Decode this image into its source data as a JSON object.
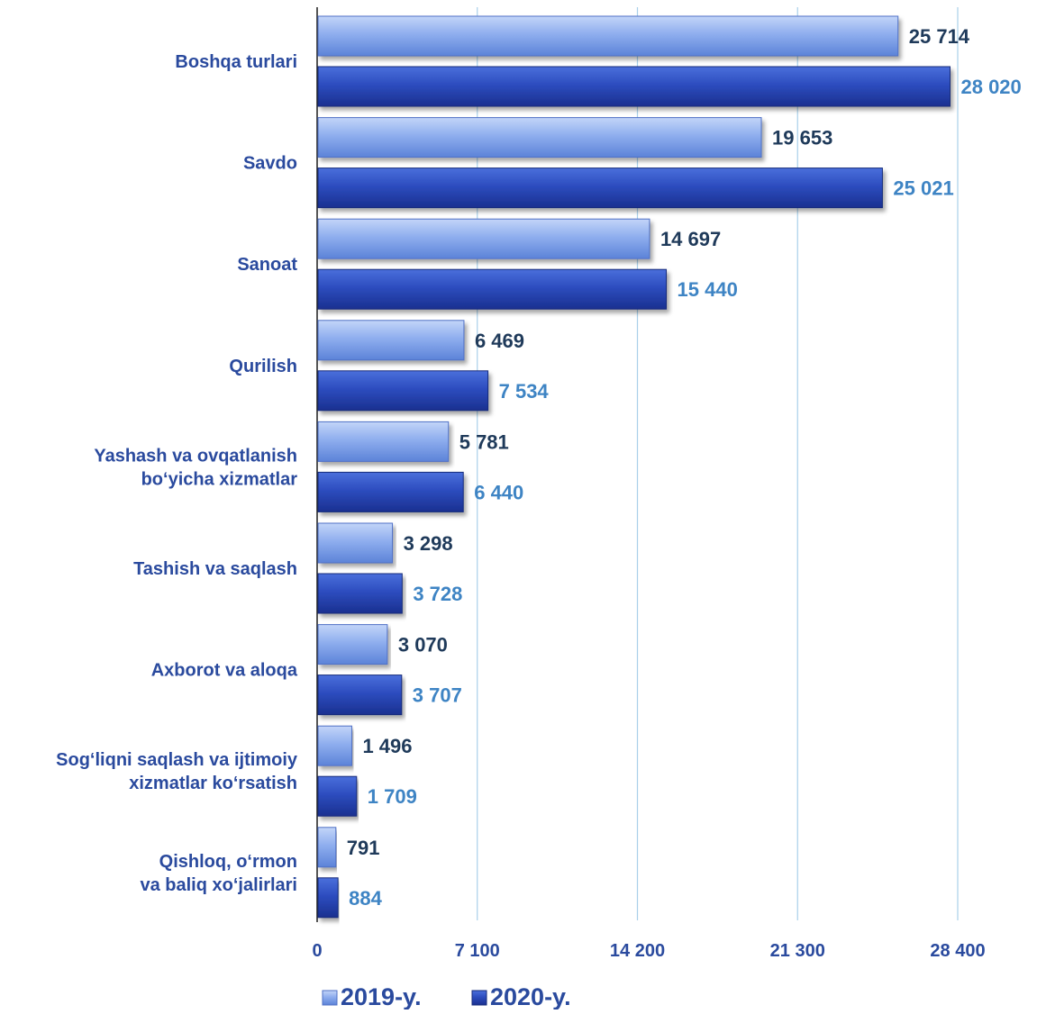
{
  "colors": {
    "series_2019_light": "#9BB8F2",
    "series_2019_dark": "#5B82DA",
    "series_2020_light": "#3B5FD0",
    "series_2020_dark": "#1C3596",
    "category_label": "#2A4A9E",
    "value_label_2019": "#1F3A5A",
    "value_label_2020": "#3E84C4",
    "tick_label": "#2A4A9E",
    "gridline": "#A9D0EA",
    "axis": "#1F1F1F"
  },
  "chart_data": {
    "type": "bar",
    "orientation": "horizontal",
    "categories": [
      [
        "Boshqa turlari"
      ],
      [
        "Savdo"
      ],
      [
        "Sanoat"
      ],
      [
        "Qurilish"
      ],
      [
        "Yashash va ovqatlanish",
        "bo‘yicha xizmatlar"
      ],
      [
        "Tashish va saqlash"
      ],
      [
        "Axborot va aloqa"
      ],
      [
        "Sog‘liqni saqlash va ijtimoiy",
        "xizmatlar ko‘rsatish"
      ],
      [
        "Qishloq, o‘rmon",
        "va baliq xo‘jalirlari"
      ]
    ],
    "series": [
      {
        "name": "2019-y.",
        "values": [
          25714,
          19653,
          14697,
          6469,
          5781,
          3298,
          3070,
          1496,
          791
        ],
        "labels": [
          "25 714",
          "19 653",
          "14 697",
          "6 469",
          "5 781",
          "3 298",
          "3 070",
          "1 496",
          "791"
        ]
      },
      {
        "name": "2020-y.",
        "values": [
          28020,
          25021,
          15440,
          7534,
          6440,
          3728,
          3707,
          1709,
          884
        ],
        "labels": [
          "28 020",
          "25 021",
          "15 440",
          "7 534",
          "6 440",
          "3 728",
          "3 707",
          "1 709",
          "884"
        ]
      }
    ],
    "xlim": [
      0,
      28400
    ],
    "xticks": [
      0,
      7100,
      14200,
      21300,
      28400
    ],
    "xtick_labels": [
      "0",
      "7 100",
      "14 200",
      "21 300",
      "28 400"
    ],
    "title": "",
    "xlabel": "",
    "ylabel": "",
    "grid": "vertical",
    "legend": "bottom-center"
  }
}
